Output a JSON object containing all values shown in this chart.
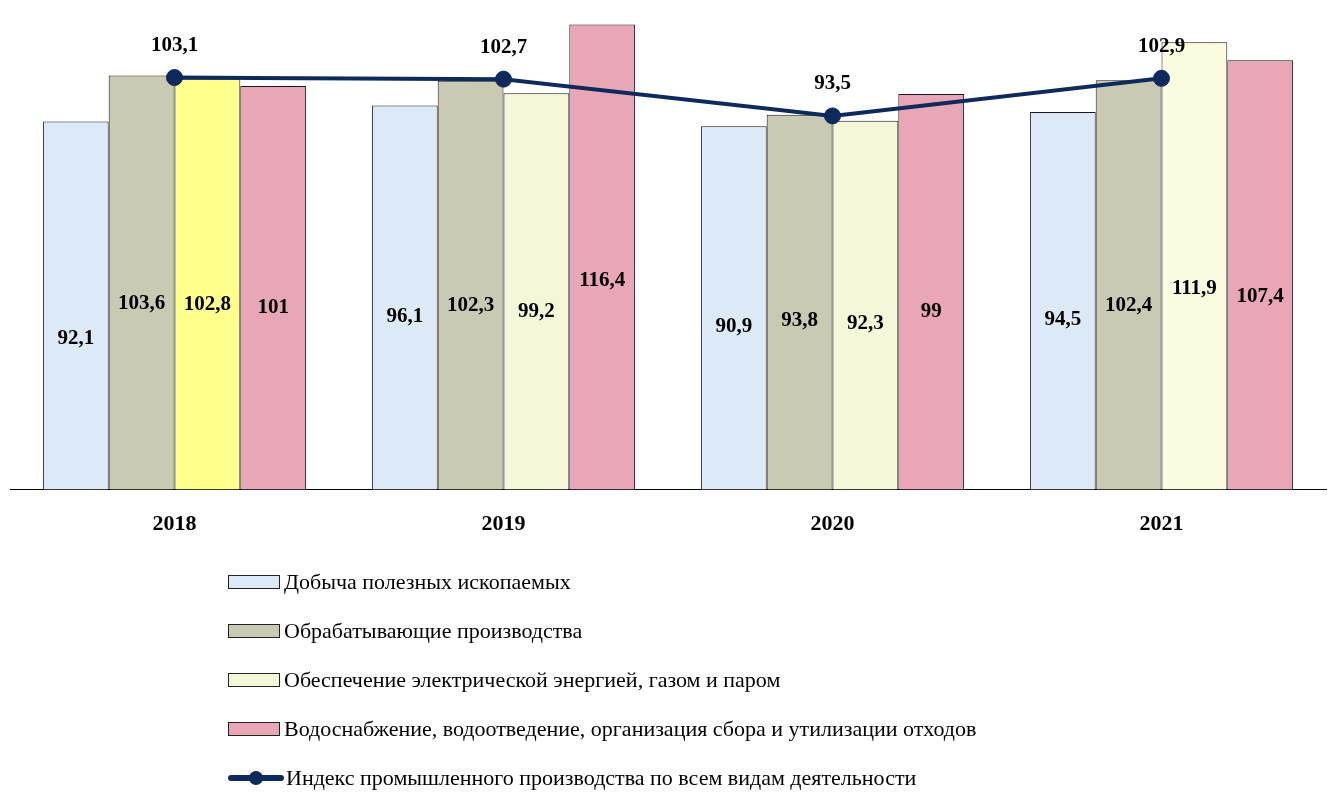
{
  "chart_data": {
    "type": "bar",
    "categories": [
      "2018",
      "2019",
      "2020",
      "2021"
    ],
    "legend": "bottom",
    "grid": false,
    "series": [
      {
        "name": "Добыча полезных ископаемых",
        "color": "#dce9f7",
        "values": [
          92.1,
          96.1,
          90.9,
          94.5
        ],
        "value_labels": [
          "92,1",
          "96,1",
          "90,9",
          "94,5"
        ]
      },
      {
        "name": "Обрабатывающие производства",
        "color": "#c9c9b4",
        "values": [
          103.6,
          102.3,
          93.8,
          102.4
        ],
        "value_labels": [
          "103,6",
          "102,3",
          "93,8",
          "102,4"
        ]
      },
      {
        "name": "Обеспечение электрической энергией, газом и паром",
        "color": "#f4f8d8",
        "colors": [
          "#ffff8c",
          "#f4f8d8",
          "#f4f8d8",
          "#fbfbe0"
        ],
        "values": [
          102.8,
          99.2,
          92.3,
          111.9
        ],
        "value_labels": [
          "102,8",
          "99,2",
          "92,3",
          "111,9"
        ]
      },
      {
        "name": "Водоснабжение, водоотведение, организация сбора и утилизации отходов",
        "color": "#e9a6b6",
        "values": [
          101,
          116.4,
          99,
          107.4
        ],
        "value_labels": [
          "101",
          "116,4",
          "99",
          "107,4"
        ]
      },
      {
        "name": "Индекс промышленного производства по всем видам деятельности",
        "type": "line",
        "color": "#0e2a5c",
        "marker": "circle",
        "values": [
          103.1,
          102.7,
          93.5,
          102.9
        ],
        "value_labels": [
          "103,1",
          "102,7",
          "93,5",
          "102,9"
        ]
      }
    ]
  }
}
